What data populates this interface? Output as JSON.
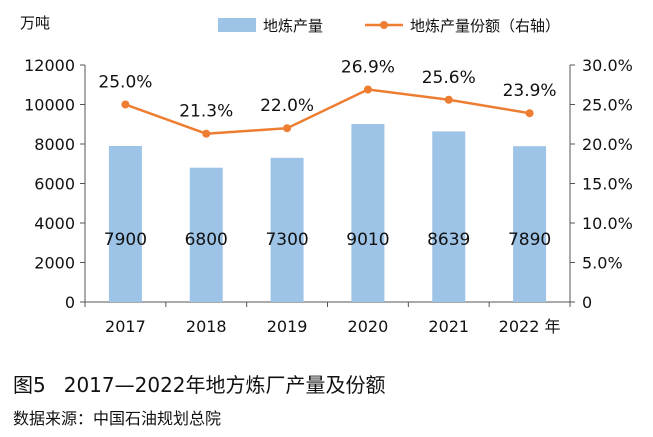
{
  "chart_data": {
    "type": "bar",
    "categories": [
      "2017",
      "2018",
      "2019",
      "2020",
      "2021",
      "2022 年"
    ],
    "series": [
      {
        "name": "地炼产量",
        "type": "bar",
        "axis": "left",
        "color": "#9dc3e6",
        "values": [
          7900,
          6800,
          7300,
          9010,
          8639,
          7890
        ],
        "labels": [
          "7900",
          "6800",
          "7300",
          "9010",
          "8639",
          "7890"
        ]
      },
      {
        "name": "地炼产量份额（右轴）",
        "type": "line",
        "axis": "right",
        "color": "#ed7d31",
        "values": [
          25.0,
          21.3,
          22.0,
          26.9,
          25.6,
          23.9
        ],
        "labels": [
          "25.0%",
          "21.3%",
          "22.0%",
          "26.9%",
          "25.6%",
          "23.9%"
        ]
      }
    ],
    "y_left": {
      "label": "万吨",
      "min": 0,
      "max": 12000,
      "ticks": [
        "0",
        "2000",
        "4000",
        "6000",
        "8000",
        "10000",
        "12000"
      ]
    },
    "y_right": {
      "min": 0,
      "max": 30,
      "ticks": [
        "0",
        "5.0%",
        "10.0%",
        "15.0%",
        "20.0%",
        "25.0%",
        "30.0%"
      ]
    },
    "legend_position": "top-right",
    "grid": false
  },
  "caption": {
    "figure_number": "图5",
    "title": "2017—2022年地方炼厂产量及份额"
  },
  "source": "数据来源：中国石油规划总院"
}
